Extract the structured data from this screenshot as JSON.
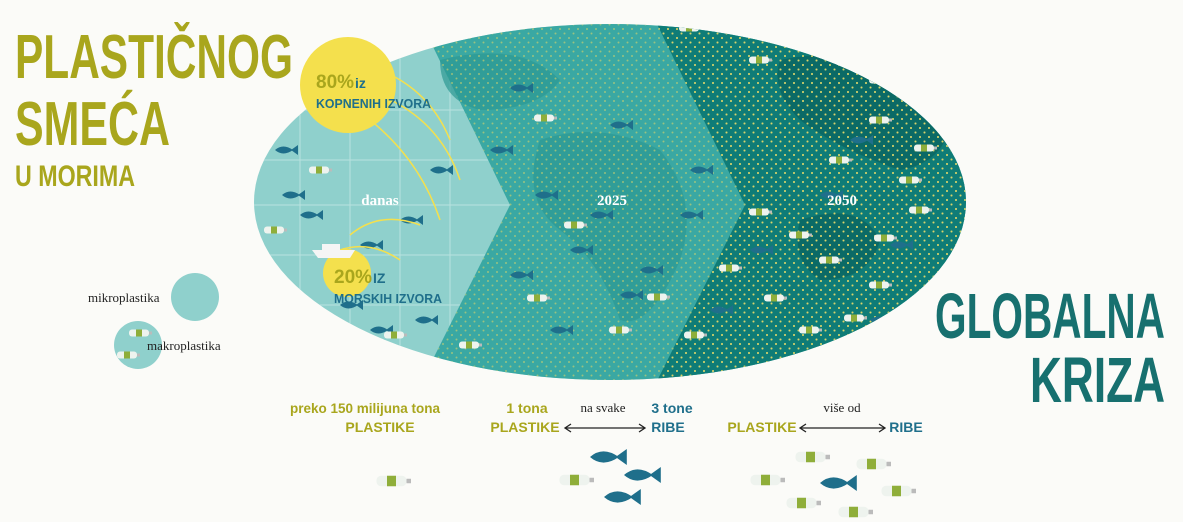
{
  "title": {
    "line1": "PLASTIČNOG",
    "line2": "SMEĆA",
    "line3": "U MORIMA"
  },
  "sources": {
    "land_percent": "80%",
    "land_word": "iz",
    "land_label": "KOPNENIH IZVORA",
    "sea_percent": "20%",
    "sea_word": "IZ",
    "sea_label": "MORSKIH IZVORA"
  },
  "legend": {
    "micro": "mikroplastika",
    "macro": "makroplastika"
  },
  "periods": [
    "danas",
    "2025",
    "2050"
  ],
  "crisis": {
    "line1": "GLOBALNA",
    "line2": "KRIZA"
  },
  "facts": {
    "today_top": "preko 150 milijuna tona",
    "today_bottom": "PLASTIKE",
    "y2025_left_top": "1 tona",
    "y2025_left_bottom": "PLASTIKE",
    "y2025_middle": "na svake",
    "y2025_right_top": "3 tone",
    "y2025_right_bottom": "RIBE",
    "y2050_left": "PLASTIKE",
    "y2050_middle": "više od",
    "y2050_right": "RIBE"
  }
}
